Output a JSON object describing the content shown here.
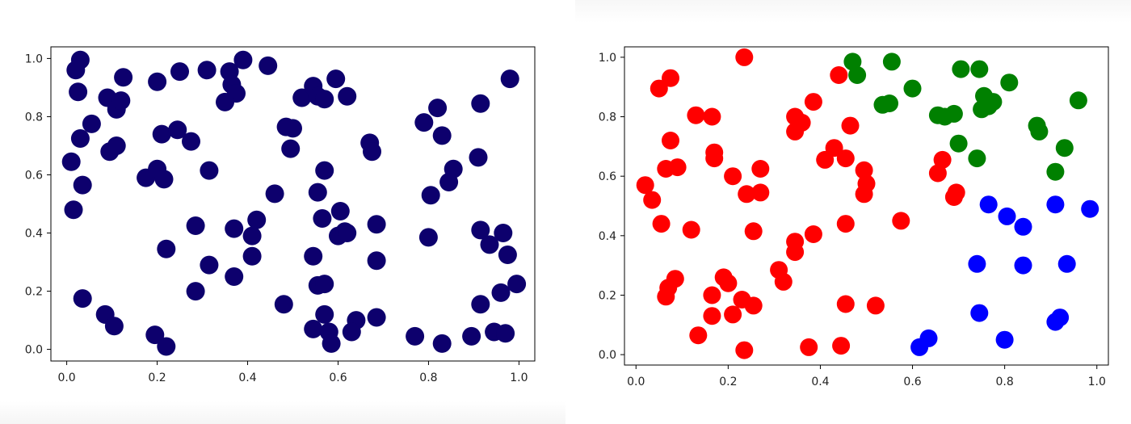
{
  "chart_data": [
    {
      "type": "scatter",
      "title": "",
      "xlabel": "",
      "ylabel": "",
      "xlim": [
        -0.035,
        1.035
      ],
      "ylim": [
        -0.04,
        1.04
      ],
      "xticks": [
        "0.0",
        "0.2",
        "0.4",
        "0.6",
        "0.8",
        "1.0"
      ],
      "yticks": [
        "0.0",
        "0.2",
        "0.4",
        "0.6",
        "0.8",
        "1.0"
      ],
      "grid": false,
      "series": [
        {
          "color": "#0d006d",
          "points": [
            [
              0.03,
              0.995
            ],
            [
              0.02,
              0.96
            ],
            [
              0.025,
              0.885
            ],
            [
              0.055,
              0.775
            ],
            [
              0.03,
              0.725
            ],
            [
              0.01,
              0.645
            ],
            [
              0.035,
              0.565
            ],
            [
              0.015,
              0.48
            ],
            [
              0.035,
              0.175
            ],
            [
              0.09,
              0.865
            ],
            [
              0.11,
              0.825
            ],
            [
              0.12,
              0.855
            ],
            [
              0.125,
              0.935
            ],
            [
              0.095,
              0.68
            ],
            [
              0.11,
              0.7
            ],
            [
              0.085,
              0.12
            ],
            [
              0.105,
              0.08
            ],
            [
              0.2,
              0.92
            ],
            [
              0.25,
              0.955
            ],
            [
              0.21,
              0.74
            ],
            [
              0.245,
              0.755
            ],
            [
              0.275,
              0.715
            ],
            [
              0.175,
              0.59
            ],
            [
              0.2,
              0.62
            ],
            [
              0.215,
              0.585
            ],
            [
              0.22,
              0.345
            ],
            [
              0.285,
              0.425
            ],
            [
              0.285,
              0.2
            ],
            [
              0.195,
              0.05
            ],
            [
              0.22,
              0.01
            ],
            [
              0.31,
              0.96
            ],
            [
              0.36,
              0.955
            ],
            [
              0.39,
              0.995
            ],
            [
              0.445,
              0.975
            ],
            [
              0.365,
              0.91
            ],
            [
              0.375,
              0.88
            ],
            [
              0.35,
              0.85
            ],
            [
              0.315,
              0.615
            ],
            [
              0.315,
              0.29
            ],
            [
              0.37,
              0.415
            ],
            [
              0.41,
              0.39
            ],
            [
              0.42,
              0.445
            ],
            [
              0.41,
              0.32
            ],
            [
              0.37,
              0.25
            ],
            [
              0.52,
              0.865
            ],
            [
              0.545,
              0.905
            ],
            [
              0.555,
              0.87
            ],
            [
              0.57,
              0.86
            ],
            [
              0.595,
              0.93
            ],
            [
              0.62,
              0.87
            ],
            [
              0.485,
              0.765
            ],
            [
              0.5,
              0.76
            ],
            [
              0.495,
              0.69
            ],
            [
              0.46,
              0.535
            ],
            [
              0.57,
              0.615
            ],
            [
              0.555,
              0.54
            ],
            [
              0.565,
              0.45
            ],
            [
              0.605,
              0.475
            ],
            [
              0.6,
              0.39
            ],
            [
              0.615,
              0.405
            ],
            [
              0.62,
              0.4
            ],
            [
              0.545,
              0.32
            ],
            [
              0.555,
              0.22
            ],
            [
              0.57,
              0.225
            ],
            [
              0.57,
              0.12
            ],
            [
              0.545,
              0.07
            ],
            [
              0.58,
              0.06
            ],
            [
              0.585,
              0.02
            ],
            [
              0.48,
              0.155
            ],
            [
              0.67,
              0.71
            ],
            [
              0.675,
              0.68
            ],
            [
              0.685,
              0.43
            ],
            [
              0.685,
              0.305
            ],
            [
              0.685,
              0.11
            ],
            [
              0.64,
              0.1
            ],
            [
              0.63,
              0.06
            ],
            [
              0.82,
              0.83
            ],
            [
              0.79,
              0.78
            ],
            [
              0.83,
              0.735
            ],
            [
              0.855,
              0.62
            ],
            [
              0.845,
              0.575
            ],
            [
              0.805,
              0.53
            ],
            [
              0.8,
              0.385
            ],
            [
              0.77,
              0.045
            ],
            [
              0.83,
              0.02
            ],
            [
              0.915,
              0.845
            ],
            [
              0.91,
              0.66
            ],
            [
              0.915,
              0.41
            ],
            [
              0.935,
              0.36
            ],
            [
              0.965,
              0.4
            ],
            [
              0.975,
              0.325
            ],
            [
              0.96,
              0.195
            ],
            [
              0.995,
              0.225
            ],
            [
              0.915,
              0.155
            ],
            [
              0.98,
              0.93
            ],
            [
              0.895,
              0.045
            ],
            [
              0.945,
              0.06
            ],
            [
              0.97,
              0.055
            ]
          ]
        }
      ]
    },
    {
      "type": "scatter",
      "title": "",
      "xlabel": "",
      "ylabel": "",
      "xlim": [
        -0.025,
        1.025
      ],
      "ylim": [
        -0.035,
        1.035
      ],
      "xticks": [
        "0.0",
        "0.2",
        "0.4",
        "0.6",
        "0.8",
        "1.0"
      ],
      "yticks": [
        "0.0",
        "0.2",
        "0.4",
        "0.6",
        "0.8",
        "1.0"
      ],
      "grid": false,
      "series": [
        {
          "color": "#ff0000",
          "points": [
            [
              0.235,
              1.0
            ],
            [
              0.05,
              0.895
            ],
            [
              0.075,
              0.93
            ],
            [
              0.13,
              0.805
            ],
            [
              0.165,
              0.8
            ],
            [
              0.075,
              0.72
            ],
            [
              0.065,
              0.625
            ],
            [
              0.09,
              0.63
            ],
            [
              0.17,
              0.68
            ],
            [
              0.17,
              0.66
            ],
            [
              0.21,
              0.6
            ],
            [
              0.24,
              0.54
            ],
            [
              0.27,
              0.545
            ],
            [
              0.27,
              0.625
            ],
            [
              0.02,
              0.57
            ],
            [
              0.035,
              0.52
            ],
            [
              0.055,
              0.44
            ],
            [
              0.12,
              0.42
            ],
            [
              0.255,
              0.415
            ],
            [
              0.085,
              0.255
            ],
            [
              0.07,
              0.225
            ],
            [
              0.065,
              0.195
            ],
            [
              0.165,
              0.2
            ],
            [
              0.19,
              0.26
            ],
            [
              0.2,
              0.24
            ],
            [
              0.23,
              0.185
            ],
            [
              0.255,
              0.165
            ],
            [
              0.21,
              0.135
            ],
            [
              0.165,
              0.13
            ],
            [
              0.135,
              0.065
            ],
            [
              0.235,
              0.015
            ],
            [
              0.44,
              0.94
            ],
            [
              0.385,
              0.85
            ],
            [
              0.345,
              0.8
            ],
            [
              0.36,
              0.78
            ],
            [
              0.345,
              0.75
            ],
            [
              0.465,
              0.77
            ],
            [
              0.41,
              0.655
            ],
            [
              0.43,
              0.695
            ],
            [
              0.455,
              0.66
            ],
            [
              0.495,
              0.62
            ],
            [
              0.5,
              0.575
            ],
            [
              0.495,
              0.54
            ],
            [
              0.345,
              0.38
            ],
            [
              0.345,
              0.345
            ],
            [
              0.385,
              0.405
            ],
            [
              0.455,
              0.44
            ],
            [
              0.31,
              0.285
            ],
            [
              0.32,
              0.245
            ],
            [
              0.375,
              0.025
            ],
            [
              0.445,
              0.03
            ],
            [
              0.455,
              0.17
            ],
            [
              0.52,
              0.165
            ],
            [
              0.575,
              0.45
            ],
            [
              0.655,
              0.61
            ],
            [
              0.665,
              0.655
            ],
            [
              0.69,
              0.53
            ],
            [
              0.695,
              0.545
            ]
          ]
        },
        {
          "color": "#008000",
          "points": [
            [
              0.47,
              0.985
            ],
            [
              0.48,
              0.94
            ],
            [
              0.555,
              0.985
            ],
            [
              0.6,
              0.895
            ],
            [
              0.535,
              0.84
            ],
            [
              0.55,
              0.845
            ],
            [
              0.655,
              0.805
            ],
            [
              0.67,
              0.8
            ],
            [
              0.69,
              0.81
            ],
            [
              0.7,
              0.71
            ],
            [
              0.74,
              0.66
            ],
            [
              0.705,
              0.96
            ],
            [
              0.745,
              0.96
            ],
            [
              0.755,
              0.87
            ],
            [
              0.75,
              0.825
            ],
            [
              0.765,
              0.835
            ],
            [
              0.775,
              0.85
            ],
            [
              0.81,
              0.915
            ],
            [
              0.87,
              0.77
            ],
            [
              0.875,
              0.75
            ],
            [
              0.93,
              0.695
            ],
            [
              0.91,
              0.615
            ],
            [
              0.96,
              0.855
            ]
          ]
        },
        {
          "color": "#0000ff",
          "points": [
            [
              0.765,
              0.505
            ],
            [
              0.805,
              0.465
            ],
            [
              0.84,
              0.43
            ],
            [
              0.91,
              0.505
            ],
            [
              0.985,
              0.49
            ],
            [
              0.74,
              0.305
            ],
            [
              0.84,
              0.3
            ],
            [
              0.935,
              0.305
            ],
            [
              0.745,
              0.14
            ],
            [
              0.91,
              0.11
            ],
            [
              0.92,
              0.125
            ],
            [
              0.8,
              0.05
            ],
            [
              0.615,
              0.025
            ],
            [
              0.635,
              0.055
            ]
          ]
        }
      ]
    }
  ]
}
